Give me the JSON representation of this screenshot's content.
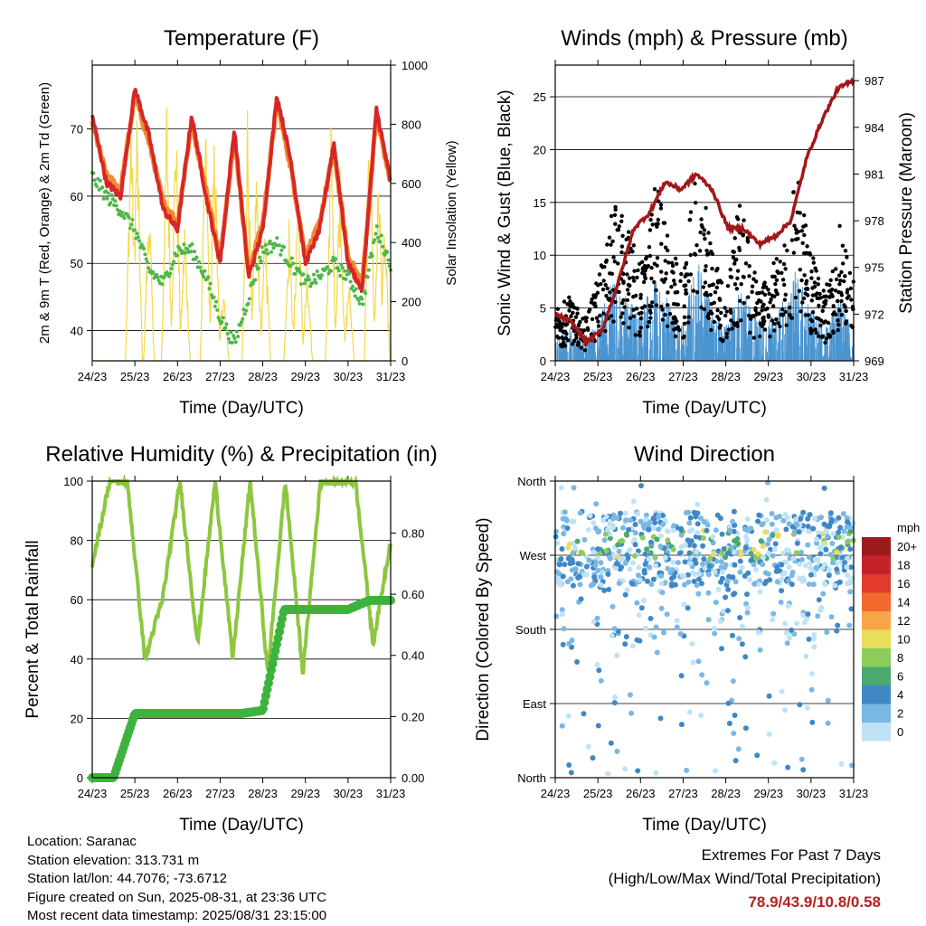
{
  "chart_data": [
    {
      "type": "line",
      "title": "Temperature (F)",
      "xlabel": "Time (Day/UTC)",
      "ylabel_left": "2m & 9m T (Red, Orange) & 2m Td (Green)",
      "ylabel_right": "Solar Insolation (Yellow)",
      "x_ticks": [
        "24/23",
        "25/23",
        "26/23",
        "27/23",
        "28/23",
        "29/23",
        "30/23",
        "31/23"
      ],
      "y_ticks": [
        "40",
        "50",
        "60",
        "70"
      ],
      "y2_ticks": [
        "0",
        "200",
        "400",
        "600",
        "800",
        "1000"
      ],
      "ylim": [
        35.5,
        79.5
      ],
      "y2lim": [
        0,
        1000
      ],
      "colors": {
        "t2m": "#d62728",
        "t9m": "#f28a30",
        "td2m": "#4db848",
        "solar": "#f5d84a"
      },
      "series": [
        {
          "name": "2m T",
          "values": [
            72,
            62,
            60,
            76,
            69,
            58,
            55,
            72,
            60,
            50,
            70,
            48,
            55,
            75,
            65,
            50,
            55,
            68,
            50,
            46,
            73,
            62
          ]
        },
        {
          "name": "9m T",
          "values": [
            71,
            63,
            61,
            75,
            68,
            59,
            56,
            71,
            61,
            51,
            69,
            49,
            56,
            74,
            64,
            51,
            56,
            67,
            51,
            47,
            72,
            62
          ]
        },
        {
          "name": "2m Td",
          "values": [
            63,
            60,
            58,
            55,
            49,
            47,
            52,
            52,
            48,
            42,
            38,
            45,
            52,
            53,
            50,
            47,
            48,
            50,
            48,
            44,
            55,
            50
          ]
        },
        {
          "name": "Solar Insolation",
          "values": [
            0,
            0,
            900,
            0,
            0,
            910,
            0,
            0,
            880,
            0,
            0,
            900,
            0,
            0,
            700,
            0,
            0,
            860,
            0,
            0,
            920,
            0
          ]
        }
      ]
    },
    {
      "type": "scatter",
      "title": "Winds (mph) & Pressure (mb)",
      "xlabel": "Time (Day/UTC)",
      "ylabel_left": "Sonic Wind & Gust (Blue, Black)",
      "ylabel_right": "Station Pressure (Maroon)",
      "x_ticks": [
        "24/23",
        "25/23",
        "26/23",
        "27/23",
        "28/23",
        "29/23",
        "30/23",
        "31/23"
      ],
      "y_ticks": [
        "0",
        "5",
        "10",
        "15",
        "20",
        "25"
      ],
      "y2_ticks": [
        "969",
        "972",
        "975",
        "978",
        "981",
        "984",
        "987"
      ],
      "ylim": [
        0,
        28
      ],
      "y2lim": [
        969,
        988
      ],
      "colors": {
        "wind": "#4a94d0",
        "gust": "#000000",
        "pressure": "#a0181c"
      },
      "series": [
        {
          "name": "Pressure",
          "values": [
            972.0,
            971.5,
            970.2,
            971.0,
            974.0,
            977.5,
            978.5,
            980.5,
            980.0,
            981.0,
            980.0,
            977.5,
            977.5,
            976.5,
            977.0,
            978.0,
            982.0,
            984.5,
            986.5,
            987.0
          ]
        }
      ]
    },
    {
      "type": "line",
      "title": "Relative Humidity (%) & Precipitation (in)",
      "xlabel": "Time (Day/UTC)",
      "ylabel_left": "Percent & Total Rainfall",
      "x_ticks": [
        "24/23",
        "25/23",
        "26/23",
        "27/23",
        "28/23",
        "29/23",
        "30/23",
        "31/23"
      ],
      "y_ticks": [
        "0",
        "20",
        "40",
        "60",
        "80",
        "100"
      ],
      "y2_ticks": [
        "0.00",
        "0.20",
        "0.40",
        "0.60",
        "0.80"
      ],
      "ylim": [
        0,
        100
      ],
      "y2lim": [
        0,
        0.97
      ],
      "colors": {
        "rh": "#8dc63f",
        "precip": "#3db33d"
      },
      "series": [
        {
          "name": "RH",
          "values": [
            72,
            100,
            100,
            40,
            60,
            100,
            45,
            100,
            40,
            100,
            35,
            100,
            35,
            100,
            100,
            100,
            45,
            80
          ]
        },
        {
          "name": "Precip",
          "values": [
            0,
            0,
            0.21,
            0.21,
            0.21,
            0.21,
            0.21,
            0.21,
            0.22,
            0.55,
            0.55,
            0.55,
            0.55,
            0.58,
            0.58
          ]
        }
      ]
    },
    {
      "type": "scatter",
      "title": "Wind Direction",
      "xlabel": "Time (Day/UTC)",
      "ylabel_left": "Direction (Colored By Speed)",
      "x_ticks": [
        "24/23",
        "25/23",
        "26/23",
        "27/23",
        "28/23",
        "29/23",
        "30/23",
        "31/23"
      ],
      "y_ticks": [
        "North",
        "East",
        "South",
        "West",
        "North"
      ],
      "ylim": [
        0,
        360
      ],
      "legend": {
        "title": "mph",
        "labels": [
          "20+",
          "18",
          "16",
          "14",
          "12",
          "10",
          "8",
          "6",
          "4",
          "2",
          "0"
        ],
        "colors": [
          "#9c1b1e",
          "#c4232a",
          "#e03b2c",
          "#f06a2e",
          "#f8a448",
          "#e8de5a",
          "#8ccc5a",
          "#4aa870",
          "#4088c4",
          "#7ab8e4",
          "#bfe2f7"
        ]
      }
    }
  ],
  "footer": {
    "location": "Location: Saranac",
    "elevation": "Station elevation: 313.731 m",
    "latlon": "Station lat/lon: 44.7076; -73.6712",
    "created": "Figure created on Sun, 2025-08-31, at 23:36 UTC",
    "recent": "Most recent data timestamp: 2025/08/31 23:15:00"
  },
  "extremes": {
    "title": "Extremes For Past 7 Days",
    "subtitle": "(High/Low/Max Wind/Total Precipitation)",
    "values": "78.9/43.9/10.8/0.58"
  }
}
